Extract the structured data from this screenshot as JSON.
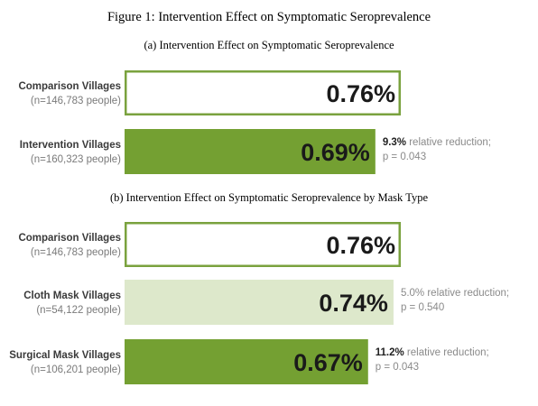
{
  "figure_title": "Figure 1:  Intervention Effect on Symptomatic Seroprevalence",
  "colors": {
    "dark_green": "#74a032",
    "light_green": "#dde8cb",
    "border_green": "#7aa23e"
  },
  "chart_data": [
    {
      "type": "bar",
      "title": "(a) Intervention Effect on Symptomatic Seroprevalence",
      "unit": "%",
      "bars": [
        {
          "name": "Comparison Villages",
          "n": "(n=146,783 people)",
          "value": 0.76,
          "label": "0.76%",
          "style": "outline",
          "note_bold": "",
          "note_line1": "",
          "note_line2": ""
        },
        {
          "name": "Intervention Villages",
          "n": "(n=160,323 people)",
          "value": 0.69,
          "label": "0.69%",
          "style": "dark",
          "note_bold": "9.3%",
          "note_line1": " relative reduction;",
          "note_line2": "p =  0.043"
        }
      ]
    },
    {
      "type": "bar",
      "title": "(b) Intervention Effect on Symptomatic Seroprevalence by Mask Type",
      "unit": "%",
      "bars": [
        {
          "name": "Comparison Villages",
          "n": "(n=146,783 people)",
          "value": 0.76,
          "label": "0.76%",
          "style": "outline",
          "note_bold": "",
          "note_line1": "",
          "note_line2": ""
        },
        {
          "name": "Cloth Mask Villages",
          "n": "(n=54,122 people)",
          "value": 0.74,
          "label": "0.74%",
          "style": "light",
          "note_bold": "",
          "note_line1": "5.0% relative reduction;",
          "note_line2": "p =  0.540"
        },
        {
          "name": "Surgical Mask Villages",
          "n": "(n=106,201 people)",
          "value": 0.67,
          "label": "0.67%",
          "style": "dark",
          "note_bold": "11.2%",
          "note_line1": " relative reduction;",
          "note_line2": "p = 0.043"
        }
      ]
    }
  ]
}
